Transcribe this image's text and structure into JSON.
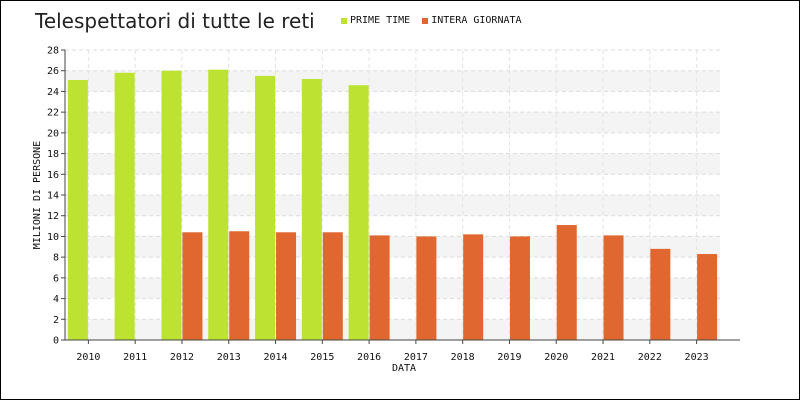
{
  "chart_data": {
    "type": "bar",
    "title": "Telespettatori di tutte le reti",
    "xlabel": "DATA",
    "ylabel": "MILIONI DI PERSONE",
    "ylim": [
      0,
      28
    ],
    "ytick_step": 2,
    "grid": true,
    "legend_position": "top-center",
    "categories": [
      "2010",
      "2011",
      "2012",
      "2013",
      "2014",
      "2015",
      "2016",
      "2017",
      "2018",
      "2019",
      "2020",
      "2021",
      "2022",
      "2023"
    ],
    "y_ticks": [
      "0",
      "2",
      "4",
      "6",
      "8",
      "10",
      "12",
      "14",
      "16",
      "18",
      "20",
      "22",
      "24",
      "26",
      "28"
    ],
    "series": [
      {
        "name": "PRIME TIME",
        "color": "#bde332",
        "values": [
          25.1,
          25.8,
          26.0,
          26.1,
          25.5,
          25.2,
          24.6,
          null,
          null,
          null,
          null,
          null,
          null,
          null
        ]
      },
      {
        "name": "INTERA GIORNATA",
        "color": "#e0672f",
        "values": [
          null,
          null,
          10.4,
          10.5,
          10.4,
          10.4,
          10.1,
          10.0,
          10.2,
          10.0,
          11.1,
          10.1,
          8.8,
          8.3
        ]
      }
    ]
  }
}
